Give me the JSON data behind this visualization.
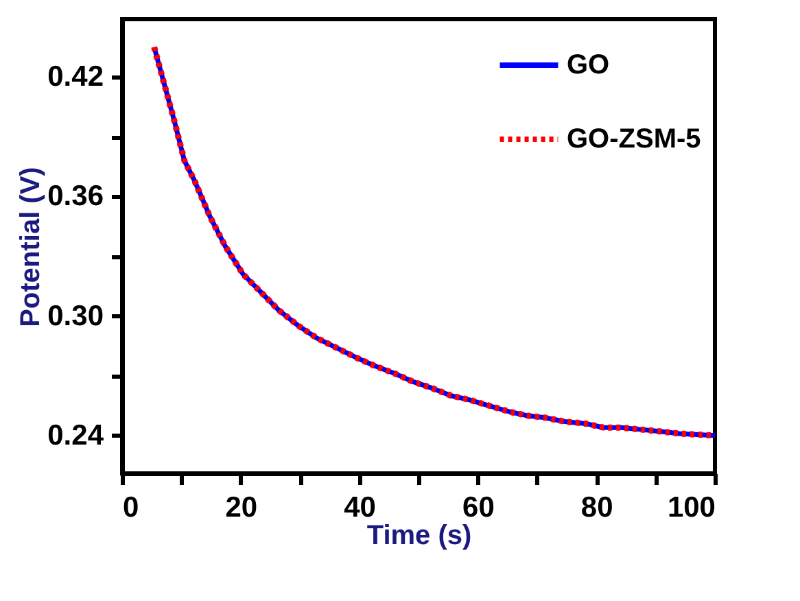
{
  "chart_data": {
    "type": "line",
    "xlabel": "Time (s)",
    "ylabel": "Potential (V)",
    "x": [
      5.4,
      8.8,
      10.5,
      12.2,
      14.8,
      17.4,
      20.4,
      23.4,
      26.4,
      29.8,
      32.8,
      36.2,
      39.6,
      42.6,
      46.1,
      49.1,
      52.1,
      55.5,
      58.5,
      61.9,
      65.3,
      68.3,
      71.3,
      74.7,
      78.2,
      81.2,
      84.2,
      87.6,
      91.0,
      94.0,
      97.0,
      100
    ],
    "series": [
      {
        "name": "GO",
        "color": "#0000ff",
        "line_style": "solid",
        "values": [
          0.435,
          0.398,
          0.378,
          0.368,
          0.35,
          0.335,
          0.321,
          0.312,
          0.303,
          0.295,
          0.289,
          0.284,
          0.279,
          0.275,
          0.271,
          0.267,
          0.264,
          0.26,
          0.258,
          0.255,
          0.252,
          0.25,
          0.249,
          0.247,
          0.246,
          0.244,
          0.244,
          0.243,
          0.242,
          0.241,
          0.2405,
          0.24
        ]
      },
      {
        "name": "GO-ZSM-5",
        "color": "#ff0000",
        "line_style": "dotted",
        "values": [
          0.435,
          0.398,
          0.378,
          0.368,
          0.35,
          0.335,
          0.321,
          0.312,
          0.303,
          0.295,
          0.289,
          0.284,
          0.279,
          0.275,
          0.271,
          0.267,
          0.264,
          0.26,
          0.258,
          0.255,
          0.252,
          0.25,
          0.249,
          0.247,
          0.246,
          0.244,
          0.244,
          0.243,
          0.242,
          0.241,
          0.2405,
          0.24
        ]
      }
    ],
    "xlim": [
      0,
      100
    ],
    "ylim": [
      0.221,
      0.449
    ],
    "xticks": [
      0,
      {
        "value": 10,
        "label": null
      },
      20,
      {
        "value": 30,
        "label": null
      },
      40,
      {
        "value": 50,
        "label": null
      },
      60,
      {
        "value": 70,
        "label": null
      },
      80,
      {
        "value": 90,
        "label": null
      },
      100
    ],
    "yticks": [
      {
        "value": 0.24,
        "label": "0.24"
      },
      {
        "value": 0.27,
        "label": null
      },
      {
        "value": 0.3,
        "label": "0.30"
      },
      {
        "value": 0.33,
        "label": null
      },
      {
        "value": 0.36,
        "label": "0.36"
      },
      {
        "value": 0.39,
        "label": null
      },
      {
        "value": 0.42,
        "label": "0.42"
      }
    ],
    "grid": false,
    "legend": "top right"
  }
}
